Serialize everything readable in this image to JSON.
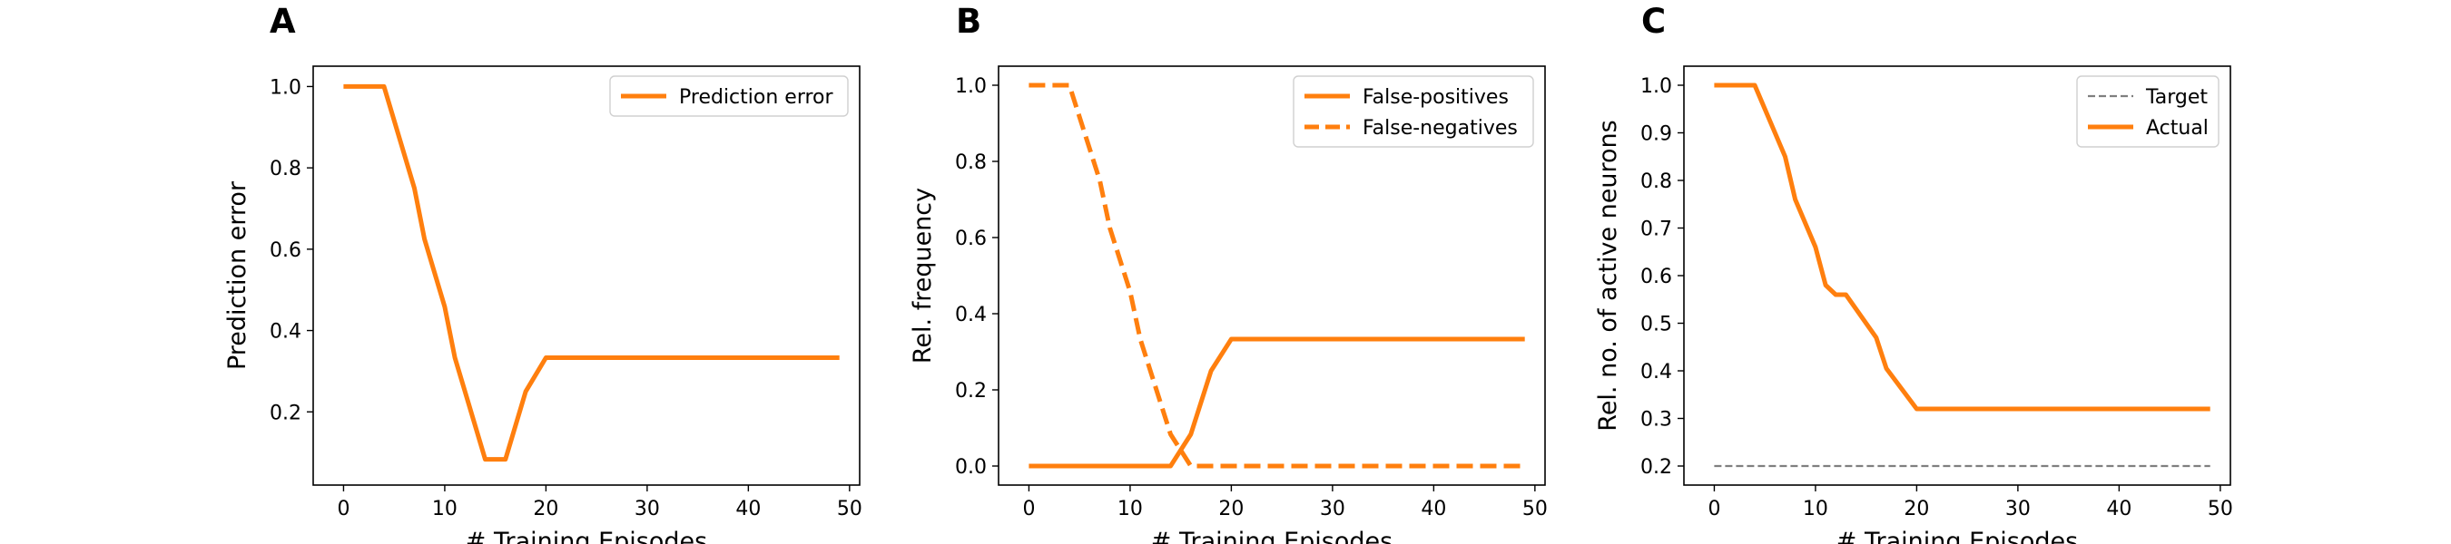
{
  "chart_data": [
    {
      "type": "line",
      "panel": "A",
      "xlabel": "# Training Episodes",
      "ylabel": "Prediction error",
      "xlim": [
        -3,
        51
      ],
      "ylim": [
        0.02,
        1.05
      ],
      "xticks": [
        0,
        10,
        20,
        30,
        40,
        50
      ],
      "yticks": [
        0.2,
        0.4,
        0.6,
        0.8,
        1.0
      ],
      "ytick_format": 1,
      "legend_position": "upper right",
      "series": [
        {
          "name": "Prediction error",
          "color": "#ff7f0e",
          "style": "solid",
          "x": [
            0,
            4,
            7,
            8,
            10,
            11,
            14,
            16,
            18,
            20,
            49
          ],
          "y": [
            1.0,
            1.0,
            0.75,
            0.625,
            0.4583,
            0.3333,
            0.0833,
            0.0833,
            0.25,
            0.3333,
            0.3333
          ]
        }
      ]
    },
    {
      "type": "line",
      "panel": "B",
      "xlabel": "# Training Episodes",
      "ylabel": "Rel. frequency",
      "xlim": [
        -3,
        51
      ],
      "ylim": [
        -0.05,
        1.05
      ],
      "xticks": [
        0,
        10,
        20,
        30,
        40,
        50
      ],
      "yticks": [
        0.0,
        0.2,
        0.4,
        0.6,
        0.8,
        1.0
      ],
      "ytick_format": 1,
      "legend_position": "upper right",
      "series": [
        {
          "name": "False-positives",
          "color": "#ff7f0e",
          "style": "solid",
          "x": [
            0,
            14,
            16,
            18,
            20,
            49
          ],
          "y": [
            0.0,
            0.0,
            0.0833,
            0.25,
            0.3333,
            0.3333
          ]
        },
        {
          "name": "False-negatives",
          "color": "#ff7f0e",
          "style": "dashed",
          "x": [
            0,
            4,
            7,
            8,
            10,
            11,
            14,
            16,
            49
          ],
          "y": [
            1.0,
            1.0,
            0.75,
            0.625,
            0.4583,
            0.3333,
            0.0833,
            0.0,
            0.0
          ]
        }
      ]
    },
    {
      "type": "line",
      "panel": "C",
      "xlabel": "# Training Episodes",
      "ylabel": "Rel. no. of active neurons",
      "xlim": [
        -3,
        51
      ],
      "ylim": [
        0.16,
        1.04
      ],
      "xticks": [
        0,
        10,
        20,
        30,
        40,
        50
      ],
      "yticks": [
        0.2,
        0.3,
        0.4,
        0.5,
        0.6,
        0.7,
        0.8,
        0.9,
        1.0
      ],
      "ytick_format": 1,
      "legend_position": "upper right",
      "series": [
        {
          "name": "Target",
          "color": "#7f7f7f",
          "style": "dashed",
          "x": [
            0,
            49
          ],
          "y": [
            0.2,
            0.2
          ]
        },
        {
          "name": "Actual",
          "color": "#ff7f0e",
          "style": "solid",
          "x": [
            0,
            4,
            7,
            8,
            10,
            11,
            12,
            13,
            16,
            17,
            20,
            49
          ],
          "y": [
            1.0,
            1.0,
            0.85,
            0.76,
            0.66,
            0.58,
            0.56,
            0.56,
            0.47,
            0.405,
            0.32,
            0.32
          ]
        }
      ]
    }
  ]
}
